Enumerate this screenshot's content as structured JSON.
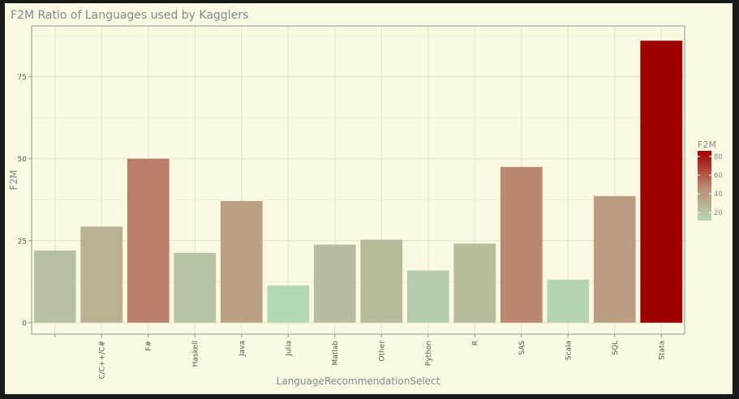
{
  "chart_data": {
    "type": "bar",
    "title": "F2M Ratio of Languages used by Kagglers",
    "xlabel": "LanguageRecommendationSelect",
    "ylabel": "F2M",
    "categories": [
      "",
      "C/C++/C#",
      "F#",
      "Haskell",
      "Java",
      "Julia",
      "Matlab",
      "Other",
      "Python",
      "R",
      "SAS",
      "Scala",
      "SQL",
      "Stata"
    ],
    "values": [
      22,
      29.3,
      50,
      21.3,
      37.1,
      11.3,
      23.8,
      25.3,
      15.9,
      24.1,
      47.5,
      13.1,
      38.6,
      86
    ],
    "yticks": [
      0,
      25,
      50,
      75
    ],
    "ylim": [
      -3.5,
      90.5
    ],
    "grid": true,
    "legend": {
      "title": "F2M",
      "ticks": [
        20,
        40,
        60,
        80
      ],
      "range": [
        11.3,
        86
      ],
      "color_low": "#b3d8b6",
      "color_mid": "#bd9075",
      "color_high": "#9e0000",
      "placement": "right"
    },
    "colors": {
      "panel_background": "#fcf9e3",
      "grid": "#e6e4d0",
      "text": "#808a8e"
    }
  }
}
